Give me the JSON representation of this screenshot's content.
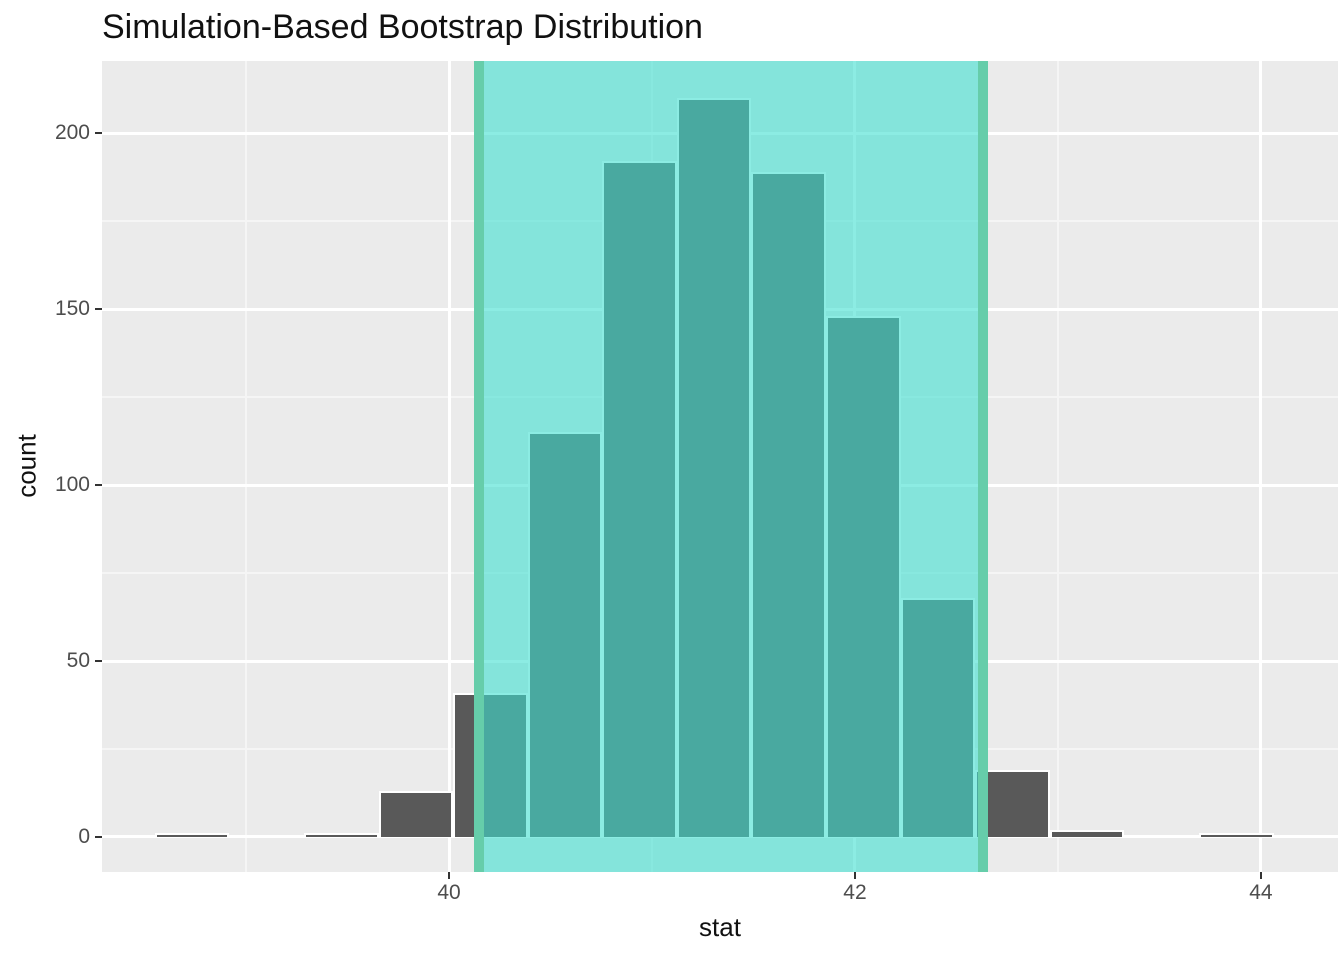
{
  "title": "Simulation-Based Bootstrap Distribution",
  "x_axis_title": "stat",
  "y_axis_title": "count",
  "chart_data": {
    "type": "bar",
    "subtype": "histogram",
    "title": "Simulation-Based Bootstrap Distribution",
    "xlabel": "stat",
    "ylabel": "count",
    "grid": true,
    "legend": false,
    "total_replicates": 1000,
    "bin_start": 38.55,
    "bin_width": 0.3675,
    "counts": [
      1,
      0,
      1,
      13,
      41,
      115,
      192,
      210,
      189,
      148,
      68,
      19,
      2,
      0,
      1
    ],
    "confidence_interval": {
      "lower": 40.15,
      "upper": 42.63
    },
    "xlim": [
      38.29,
      44.38
    ],
    "ylim": [
      -9.95,
      220.5
    ],
    "x_major_ticks": [
      40,
      42,
      44
    ],
    "y_major_ticks": [
      0,
      50,
      100,
      150,
      200
    ],
    "x_minor_gridlines": [
      39,
      41,
      43
    ],
    "y_minor_gridlines": [
      25,
      75,
      125,
      175
    ],
    "colors": {
      "panel_background": "#EBEBEB",
      "grid_major": "#FFFFFF",
      "grid_minor": "#F5F5F5",
      "bar_fill": "#595959",
      "bar_outline": "#FFFFFF",
      "ci_fill": "rgba(64,224,208,0.6)",
      "ci_line": "#66CDAA",
      "tick_text": "#4D4D4D",
      "title_text": "#111111"
    }
  }
}
